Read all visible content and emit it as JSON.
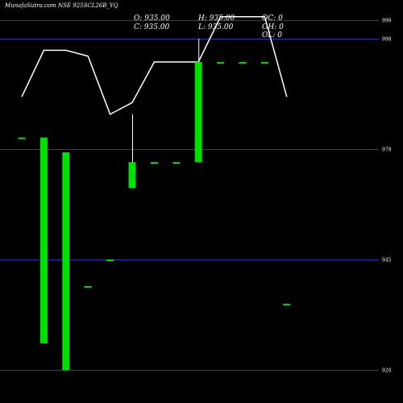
{
  "header": {
    "title": "MunafaSutra.com NSE 925SCL26B_YQ",
    "open": "O: 935.00",
    "high": "H: 935.00",
    "oc": "OC: 0",
    "close": "C: 935.00",
    "low": "L: 935.00",
    "oh": "OH: 0",
    "ol": "OL: 0"
  },
  "colors": {
    "background": "#000000",
    "grid": "#3333aa",
    "candle_up": "#00e000",
    "moving_average": "#ffffff",
    "text": "#ffffff"
  },
  "chart_data": {
    "type": "candlestick",
    "title": "MunafaSutra.com NSE 925SCL26B_YQ",
    "y_ticks": [
      999,
      998,
      979,
      945,
      920
    ],
    "ylim": [
      917.5,
      1003
    ],
    "grid": true,
    "candles": [
      {
        "open": 981,
        "high": 981,
        "low": 981,
        "close": 981
      },
      {
        "open": 981,
        "high": 981,
        "low": 926,
        "close": 926
      },
      {
        "open": 978,
        "high": 978,
        "low": 920,
        "close": 920
      },
      {
        "open": 939,
        "high": 939,
        "low": 939,
        "close": 939
      },
      {
        "open": 945,
        "high": 945,
        "low": 945,
        "close": 945
      },
      {
        "open": 967,
        "high": 985,
        "low": 967,
        "close": 975
      },
      {
        "open": 975,
        "high": 975,
        "low": 975,
        "close": 975
      },
      {
        "open": 975,
        "high": 975,
        "low": 975,
        "close": 975
      },
      {
        "open": 975,
        "high": 998,
        "low": 975,
        "close": 994
      },
      {
        "open": 994,
        "high": 994,
        "low": 994,
        "close": 994
      },
      {
        "open": 994,
        "high": 994,
        "low": 994,
        "close": 994
      },
      {
        "open": 994,
        "high": 994,
        "low": 994,
        "close": 994
      },
      {
        "open": 935,
        "high": 935,
        "low": 935,
        "close": 935
      }
    ],
    "moving_average": [
      988,
      996,
      996,
      995,
      985,
      987,
      994,
      994,
      994,
      1000,
      1000,
      1000,
      988
    ]
  }
}
